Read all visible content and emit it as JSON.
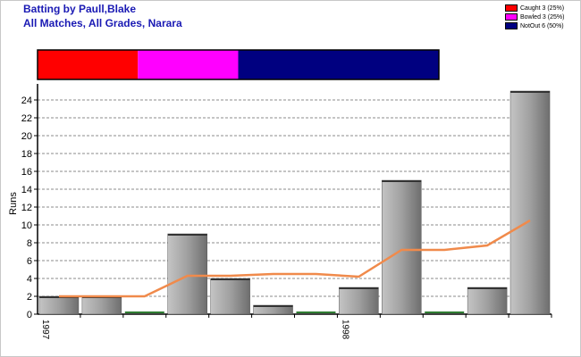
{
  "header": {
    "title_line1": "Batting by Paull,Blake",
    "title_line2": "All Matches, All Grades, Narara"
  },
  "legend": [
    {
      "label": "Caught 3 (25%)",
      "color": "#ff0000"
    },
    {
      "label": "Bowled 3 (25%)",
      "color": "#ff00ff"
    },
    {
      "label": "NotOut 6 (50%)",
      "color": "#000080"
    }
  ],
  "chart_data": [
    {
      "type": "bar",
      "title": "",
      "series": [
        {
          "name": "Caught",
          "values": [
            3
          ],
          "color": "#ff0000"
        },
        {
          "name": "Bowled",
          "values": [
            3
          ],
          "color": "#ff00ff"
        },
        {
          "name": "NotOut",
          "values": [
            6
          ],
          "color": "#000080"
        }
      ]
    },
    {
      "type": "bar",
      "title": "",
      "ylabel": "Runs",
      "xlabel": "",
      "ylim": [
        0,
        25
      ],
      "yticks": [
        0,
        2,
        4,
        6,
        8,
        10,
        12,
        14,
        16,
        18,
        20,
        22,
        24
      ],
      "grid": true,
      "x_tick_labels": [
        {
          "index": 0,
          "label": "1997"
        },
        {
          "index": 7,
          "label": "1998"
        }
      ],
      "innings": [
        2,
        2,
        0,
        9,
        4,
        1,
        0,
        3,
        15,
        0,
        3,
        25
      ],
      "average_line": [
        2,
        2,
        2,
        4.3,
        4.3,
        4.5,
        4.5,
        4.2,
        7.2,
        7.2,
        7.7,
        10.5
      ],
      "colors": {
        "bar": "#a8a8a8",
        "zero_marker": "#2e7d32",
        "average": "#f08a4b"
      }
    }
  ]
}
